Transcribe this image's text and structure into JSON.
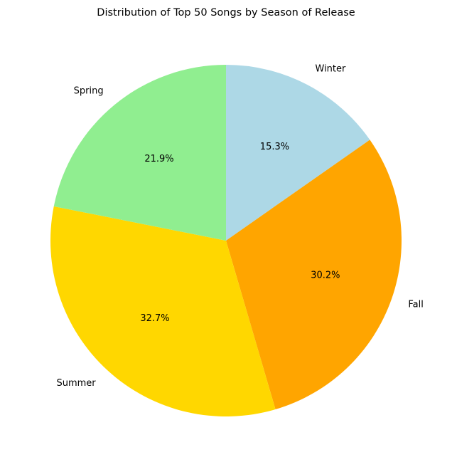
{
  "chart_data": {
    "type": "pie",
    "title": "Distribution of Top 50 Songs by Season of Release",
    "slices": [
      {
        "label": "Winter",
        "value": 15.3,
        "pct_label": "15.3%",
        "color": "#add8e6"
      },
      {
        "label": "Fall",
        "value": 30.2,
        "pct_label": "30.2%",
        "color": "#ffa500"
      },
      {
        "label": "Summer",
        "value": 32.7,
        "pct_label": "32.7%",
        "color": "#ffd700"
      },
      {
        "label": "Spring",
        "value": 21.9,
        "pct_label": "21.9%",
        "color": "#90ee90"
      }
    ],
    "start_angle_deg": 90,
    "direction": "clockwise"
  }
}
